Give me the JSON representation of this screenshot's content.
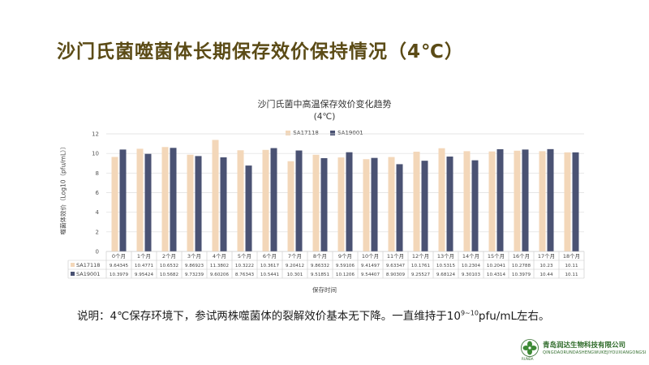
{
  "slide": {
    "title": "沙门氏菌噬菌体长期保存效价保持情况（4℃）",
    "note_prefix": "说明：4℃保存环境下，参试两株噬菌体的裂解效价基本无下降。一直维持于10",
    "note_sup": "9~10",
    "note_suffix": "pfu/mL左右。"
  },
  "company": {
    "name_cn": "青岛润达生物科技有限公司",
    "name_en": "QINGDAORUNDASHENGWUKEJIYOUXIANGONGSI",
    "brand": "RUNDA",
    "logo_icon": "clover-leaf-logo-icon"
  },
  "colors": {
    "title": "#5b4b16",
    "series_a": "#f3d7b9",
    "series_b": "#4a5273"
  },
  "chart_data": {
    "type": "bar",
    "title": "沙门氏菌中高温保存效价变化趋势",
    "subtitle": "(4℃)",
    "xlabel": "保存时间",
    "ylabel": "噬菌体效价（Log10（pfu/mL））",
    "ylim": [
      0,
      12
    ],
    "yticks": [
      0,
      2,
      4,
      6,
      8,
      10,
      12
    ],
    "grid": true,
    "legend_position": "top-center",
    "categories": [
      "0个月",
      "1个月",
      "2个月",
      "3个月",
      "4个月",
      "5个月",
      "6个月",
      "7个月",
      "8个月",
      "9个月",
      "10个月",
      "11个月",
      "12个月",
      "13个月",
      "14个月",
      "15个月",
      "16个月",
      "17个月",
      "18个月"
    ],
    "series": [
      {
        "name": "SA17118",
        "values": [
          9.64345,
          10.4771,
          10.6532,
          9.86923,
          11.3802,
          10.3222,
          10.3617,
          9.20412,
          9.86332,
          9.59106,
          9.41497,
          9.63347,
          10.1761,
          10.5315,
          10.2304,
          10.2041,
          10.2788,
          10.23,
          10.11
        ],
        "labels": [
          "9.64345",
          "10.4771",
          "10.6532",
          "9.86923",
          "11.3802",
          "10.3222",
          "10.3617",
          "9.20412",
          "9.86332",
          "9.59106",
          "9.41497",
          "9.63347",
          "10.1761",
          "10.5315",
          "10.2304",
          "10.2041",
          "10.2788",
          "10.23",
          "10.11"
        ]
      },
      {
        "name": "SA19001",
        "values": [
          10.3979,
          9.95424,
          10.5682,
          9.73239,
          9.60206,
          8.76343,
          10.5441,
          10.301,
          9.51851,
          10.1206,
          9.54407,
          8.90309,
          9.25527,
          9.68124,
          9.30103,
          10.4314,
          10.3979,
          10.44,
          10.11
        ],
        "labels": [
          "10.3979",
          "9.95424",
          "10.5682",
          "9.73239",
          "9.60206",
          "8.76343",
          "10.5441",
          "10.301",
          "9.51851",
          "10.1206",
          "9.54407",
          "8.90309",
          "9.25527",
          "9.68124",
          "9.30103",
          "10.4314",
          "10.3979",
          "10.44",
          "10.11"
        ]
      }
    ]
  }
}
